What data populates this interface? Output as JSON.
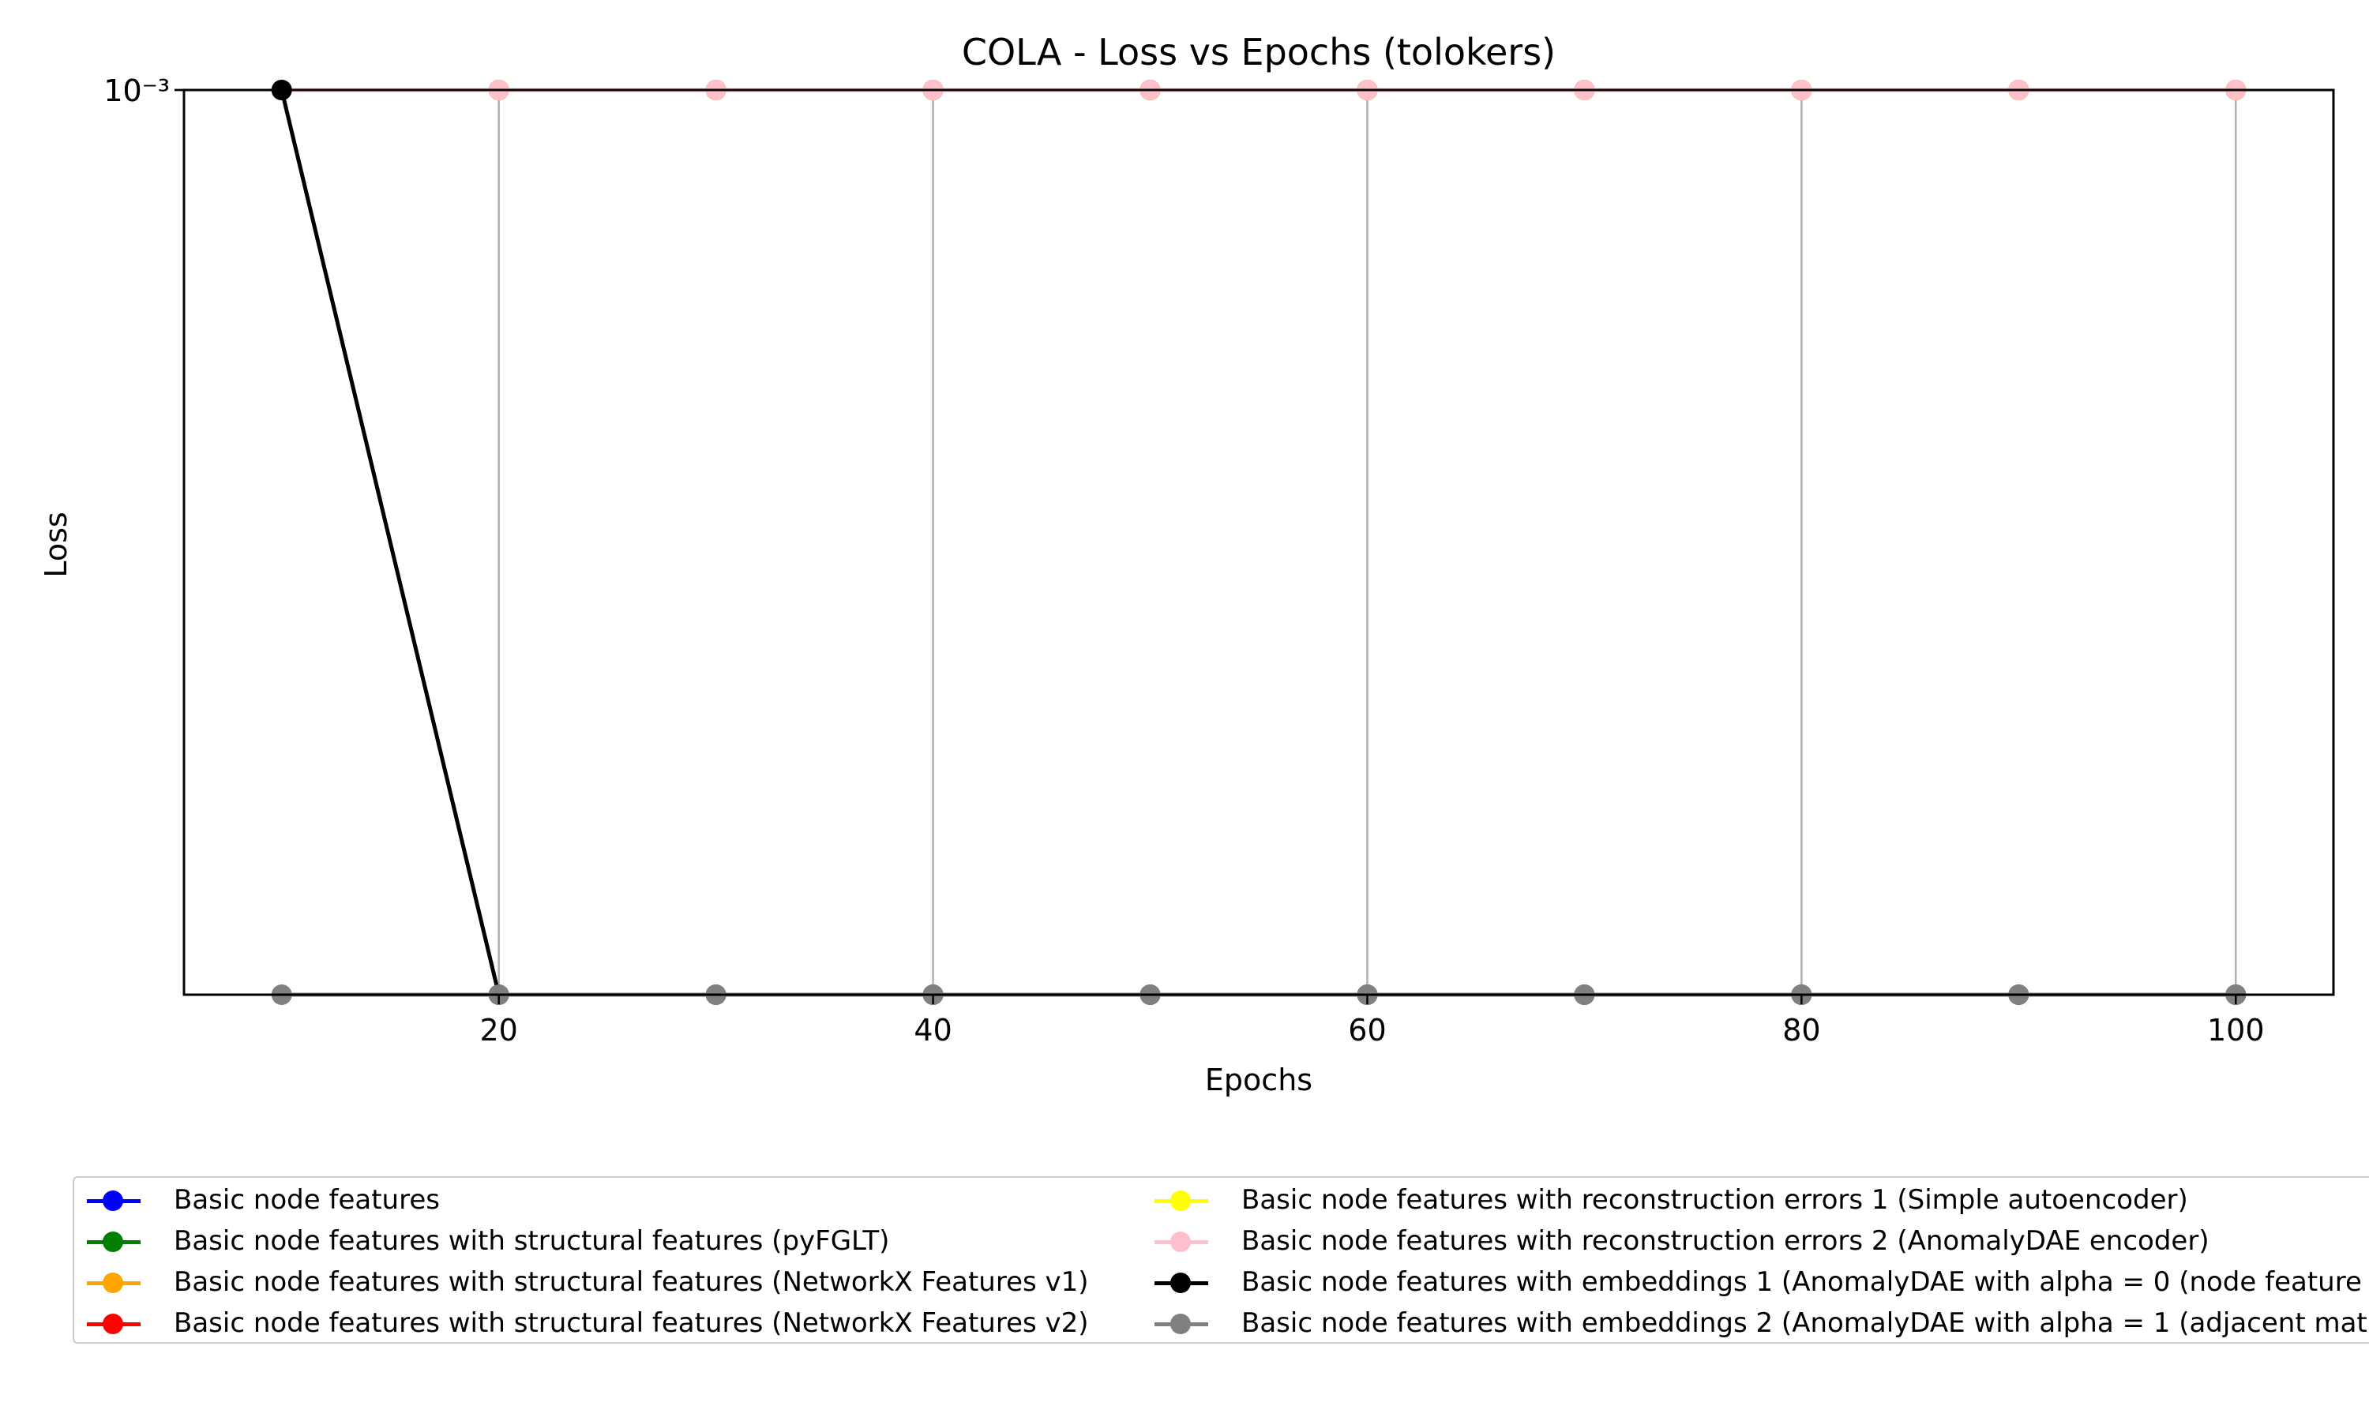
{
  "chart_data": {
    "type": "line",
    "title": "COLA - Loss vs Epochs (tolokers)",
    "xlabel": "Epochs",
    "ylabel": "Loss",
    "yscale": "log",
    "ytick_labels": [
      "10⁻³",
      "10⁻³"
    ],
    "xlim": [
      5.5,
      104.5
    ],
    "xticks": [
      20,
      40,
      60,
      80,
      100
    ],
    "grid": "x-only",
    "legend_location": "below plot, two columns",
    "x": [
      10,
      20,
      30,
      40,
      50,
      60,
      70,
      80,
      90,
      100
    ],
    "series": [
      {
        "name": "Basic node features",
        "color": "#0000ff",
        "values": [
          0.001,
          0.001,
          0.001,
          0.001,
          0.001,
          0.001,
          0.001,
          0.001,
          0.001,
          0.001
        ]
      },
      {
        "name": "Basic node features with structural features (pyFGLT)",
        "color": "#008000",
        "values": [
          0.001,
          0.001,
          0.001,
          0.001,
          0.001,
          0.001,
          0.001,
          0.001,
          0.001,
          0.001
        ]
      },
      {
        "name": "Basic node features with structural features (NetworkX Features v1)",
        "color": "#ffa500",
        "values": [
          0.001,
          0.001,
          0.001,
          0.001,
          0.001,
          0.001,
          0.001,
          0.001,
          0.001,
          0.001
        ]
      },
      {
        "name": "Basic node features with structural features (NetworkX Features v2)",
        "color": "#ff0000",
        "values": [
          0.001,
          0.001,
          0.001,
          0.001,
          0.001,
          0.001,
          0.001,
          0.001,
          0.001,
          0.001
        ]
      },
      {
        "name": "Basic node features with reconstruction errors 1 (Simple autoencoder)",
        "color": "#ffff00",
        "values": [
          0.001,
          0.001,
          0.001,
          0.001,
          0.001,
          0.001,
          0.001,
          0.001,
          0.001,
          0.001
        ]
      },
      {
        "name": "Basic node features with reconstruction errors 2 (AnomalyDAE encoder)",
        "color": "#ffc0cb",
        "values": [
          0.001,
          0.001,
          0.001,
          0.001,
          0.001,
          0.001,
          0.001,
          0.001,
          0.001,
          0.001
        ]
      },
      {
        "name": "Basic node features with embeddings 1 (AnomalyDAE with alpha = 0 (node feature",
        "color": "#000000",
        "values": [
          0.001,
          0.00099,
          0.00099,
          0.00099,
          0.00099,
          0.00099,
          0.00099,
          0.00099,
          0.00099,
          0.00099
        ]
      },
      {
        "name": "Basic node features with embeddings 2 (AnomalyDAE with alpha = 1 (adjacent mat",
        "color": "#808080",
        "values": [
          0.00099,
          0.00099,
          0.00099,
          0.00099,
          0.00099,
          0.00099,
          0.00099,
          0.00099,
          0.00099,
          0.00099
        ]
      }
    ]
  }
}
